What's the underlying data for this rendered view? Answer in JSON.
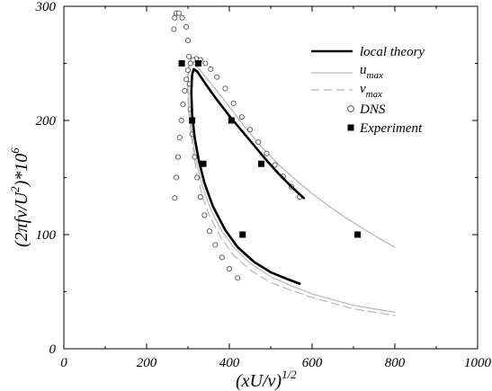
{
  "chart_data": {
    "type": "line",
    "xlabel": "(xU/ν)",
    "xlabel_exp": "1/2",
    "ylabel": "(2πfν/U",
    "ylabel_exp": "2",
    "ylabel_tail": ")*10",
    "ylabel_tail_exp": "6",
    "xlim": [
      0,
      1000
    ],
    "ylim": [
      0,
      300
    ],
    "xticks": [
      "0",
      "200",
      "400",
      "600",
      "800",
      "1000"
    ],
    "yticks": [
      "0",
      "100",
      "200",
      "300"
    ],
    "grid": false,
    "legend_position": "top-right",
    "series": [
      {
        "name": "local theory",
        "style": "solid-thick",
        "color": "#000000",
        "x": [
          580,
          550,
          520,
          490,
          460,
          430,
          400,
          370,
          350,
          335,
          322,
          314,
          310,
          308,
          310,
          316,
          326,
          340,
          360,
          390,
          420,
          460,
          500,
          540,
          570
        ],
        "y": [
          132,
          142,
          153,
          165,
          178,
          191,
          204,
          218,
          228,
          236,
          243,
          245,
          240,
          225,
          205,
          185,
          165,
          145,
          125,
          104,
          89,
          76,
          67,
          61,
          57
        ]
      },
      {
        "name_main": "u",
        "name_sub": "max",
        "style": "solid-thin",
        "color": "#b8b8b8",
        "x": [
          800,
          760,
          720,
          680,
          640,
          600,
          560,
          520,
          480,
          440,
          400,
          370,
          345,
          325,
          312,
          304,
          300,
          303,
          310,
          320,
          335,
          355,
          380,
          410,
          450,
          500,
          550,
          600,
          650,
          700,
          750,
          800
        ],
        "y": [
          89,
          97,
          106,
          115,
          125,
          136,
          148,
          161,
          176,
          193,
          212,
          226,
          237,
          246,
          250,
          248,
          232,
          210,
          186,
          165,
          142,
          122,
          104,
          89,
          75,
          63,
          55,
          48,
          43,
          38,
          35,
          32
        ]
      },
      {
        "name_main": "v",
        "name_sub": "max",
        "style": "dashed",
        "color": "#b8b8b8",
        "x": [
          800,
          760,
          720,
          680,
          640,
          600,
          560,
          520,
          480,
          440,
          400,
          370,
          345,
          325,
          310,
          302,
          298,
          302,
          310,
          320,
          335,
          355,
          380,
          410,
          450,
          500,
          550,
          600,
          650,
          700,
          750,
          800
        ],
        "y": [
          89,
          97,
          106,
          115,
          125,
          136,
          148,
          161,
          176,
          193,
          212,
          226,
          237,
          246,
          251,
          249,
          233,
          207,
          180,
          156,
          133,
          114,
          97,
          82,
          69,
          58,
          51,
          45,
          40,
          35,
          32,
          29
        ]
      },
      {
        "name": "DNS",
        "style": "markers-open-circle",
        "color": "#555555",
        "x": [
          570,
          550,
          530,
          510,
          490,
          470,
          450,
          430,
          410,
          390,
          370,
          355,
          342,
          330,
          320,
          312,
          306,
          300,
          296,
          292,
          288,
          284,
          280,
          276,
          272,
          268,
          266,
          268,
          272,
          278,
          286,
          296,
          300,
          302,
          304,
          306,
          310,
          316,
          322,
          330,
          340,
          352,
          366,
          382,
          400,
          420
        ],
        "y": [
          133,
          142,
          151,
          161,
          171,
          181,
          192,
          203,
          215,
          228,
          238,
          245,
          250,
          253,
          254,
          253,
          250,
          244,
          236,
          226,
          214,
          200,
          185,
          168,
          150,
          132,
          280,
          290,
          294,
          294,
          290,
          282,
          270,
          256,
          232,
          210,
          188,
          168,
          150,
          133,
          117,
          103,
          91,
          80,
          70,
          62
        ]
      },
      {
        "name": "Experiment",
        "style": "markers-filled-square",
        "color": "#000000",
        "x": [
          285,
          325,
          310,
          405,
          337,
          477,
          432,
          710
        ],
        "y": [
          250,
          250,
          200,
          200,
          162,
          162,
          100,
          100
        ]
      }
    ]
  }
}
